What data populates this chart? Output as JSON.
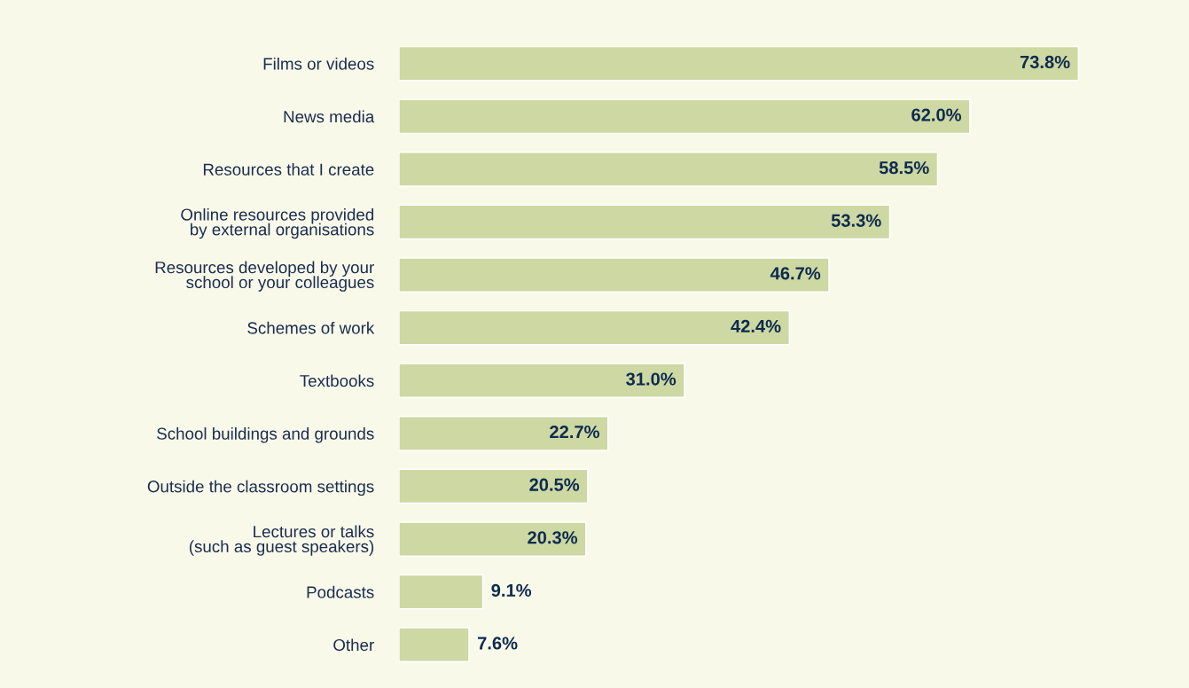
{
  "chart_data": {
    "type": "bar",
    "orientation": "horizontal",
    "color": "#cdd8a3",
    "categories": [
      "Films or videos",
      "News media",
      "Resources that I create",
      "Online resources provided\nby external organisations",
      "Resources developed by your\nschool or your colleagues",
      "Schemes of work",
      "Textbooks",
      "School buildings and grounds",
      "Outside the classroom settings",
      "Lectures or talks\n(such as guest speakers)",
      "Podcasts",
      "Other"
    ],
    "values": [
      73.8,
      62.0,
      58.5,
      53.3,
      46.7,
      42.4,
      31.0,
      22.7,
      20.5,
      20.3,
      9.1,
      7.6
    ],
    "value_labels": [
      "73.8%",
      "62.0%",
      "58.5%",
      "53.3%",
      "46.7%",
      "42.4%",
      "31.0%",
      "22.7%",
      "20.5%",
      "20.3%",
      "9.1%",
      "7.6%"
    ],
    "grid": false,
    "legend": false
  }
}
